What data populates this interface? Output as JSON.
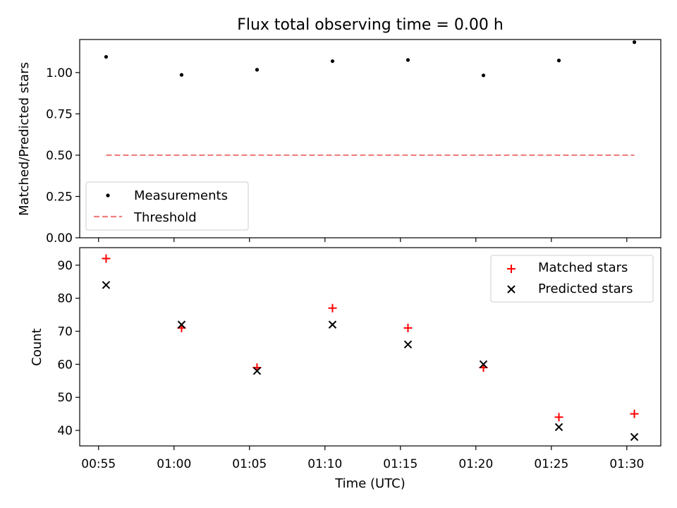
{
  "title": "Flux total observing time = 0.00 h",
  "x_tick_labels": [
    "00:55",
    "01:00",
    "01:05",
    "01:10",
    "01:15",
    "01:20",
    "01:25",
    "01:30"
  ],
  "xlabel": "Time (UTC)",
  "chart_data": [
    {
      "type": "scatter",
      "title": "Flux total observing time = 0.00 h",
      "ylabel": "Matched/Predicted stars",
      "ylim": [
        0,
        1.2
      ],
      "yticks": [
        "0.00",
        "0.25",
        "0.50",
        "0.75",
        "1.00"
      ],
      "ytick_values": [
        0,
        0.25,
        0.5,
        0.75,
        1.0
      ],
      "x": [
        "00:55:30",
        "01:00:30",
        "01:05:30",
        "01:10:30",
        "01:15:30",
        "01:20:30",
        "01:25:30",
        "01:30:30"
      ],
      "x_minutes": [
        55.5,
        60.5,
        65.5,
        70.5,
        75.5,
        80.5,
        85.5,
        90.5
      ],
      "series": [
        {
          "name": "Measurements",
          "values": [
            1.095,
            0.986,
            1.017,
            1.069,
            1.076,
            0.983,
            1.073,
            1.184
          ],
          "color": "#000000"
        },
        {
          "name": "Threshold",
          "values": [
            0.5,
            0.5,
            0.5,
            0.5,
            0.5,
            0.5,
            0.5,
            0.5
          ],
          "color": "#f08080",
          "style": "dashed"
        }
      ],
      "legend_position": "bottom-left"
    },
    {
      "type": "scatter",
      "xlabel": "Time (UTC)",
      "ylabel": "Count",
      "ylim": [
        35.3,
        95.3
      ],
      "yticks": [
        "40",
        "50",
        "60",
        "70",
        "80",
        "90"
      ],
      "ytick_values": [
        40,
        50,
        60,
        70,
        80,
        90
      ],
      "x": [
        "00:55:30",
        "01:00:30",
        "01:05:30",
        "01:10:30",
        "01:15:30",
        "01:20:30",
        "01:25:30",
        "01:30:30"
      ],
      "x_minutes": [
        55.5,
        60.5,
        65.5,
        70.5,
        75.5,
        80.5,
        85.5,
        90.5
      ],
      "series": [
        {
          "name": "Matched stars",
          "values": [
            92,
            71,
            59,
            77,
            71,
            59,
            44,
            45
          ],
          "color": "#ff0000",
          "marker": "plus"
        },
        {
          "name": "Predicted stars",
          "values": [
            84,
            72,
            58,
            72,
            66,
            60,
            41,
            38
          ],
          "color": "#000000",
          "marker": "x"
        }
      ],
      "legend_position": "top-right"
    }
  ],
  "xlim_minutes": [
    53.75,
    92.25
  ],
  "x_tick_minutes": [
    55,
    60,
    65,
    70,
    75,
    80,
    85,
    90
  ]
}
